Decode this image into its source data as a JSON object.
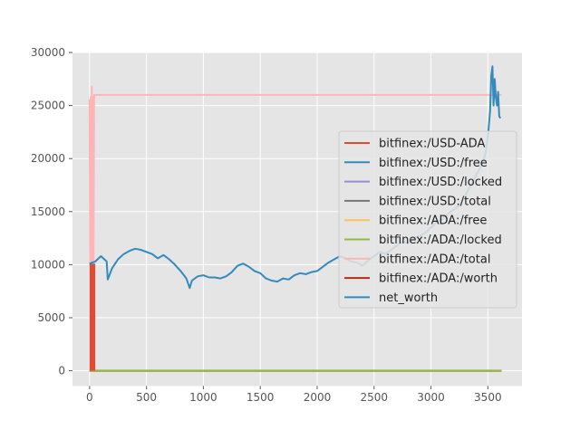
{
  "chart_data": {
    "type": "line",
    "title": "",
    "xlabel": "",
    "ylabel": "",
    "xlim": [
      -150,
      3800
    ],
    "ylim": [
      -1400,
      30000
    ],
    "grid": true,
    "legend_position": "center-right",
    "x_ticks": [
      {
        "value": 0,
        "label": "0"
      },
      {
        "value": 500,
        "label": "500"
      },
      {
        "value": 1000,
        "label": "1000"
      },
      {
        "value": 1500,
        "label": "1500"
      },
      {
        "value": 2000,
        "label": "2000"
      },
      {
        "value": 2500,
        "label": "2500"
      },
      {
        "value": 3000,
        "label": "3000"
      },
      {
        "value": 3500,
        "label": "3500"
      }
    ],
    "y_ticks": [
      {
        "value": 0,
        "label": "0"
      },
      {
        "value": 5000,
        "label": "5000"
      },
      {
        "value": 10000,
        "label": "10000"
      },
      {
        "value": 15000,
        "label": "15000"
      },
      {
        "value": 20000,
        "label": "20000"
      },
      {
        "value": 25000,
        "label": "25000"
      },
      {
        "value": 30000,
        "label": "30000"
      }
    ],
    "series": [
      {
        "name": "bitfinex:/USD-ADA",
        "color": "#e24a33",
        "kind": "band",
        "x": [
          0,
          10,
          20,
          30,
          40,
          50
        ],
        "y": [
          10000,
          0,
          10000,
          0,
          10000,
          0
        ]
      },
      {
        "name": "bitfinex:/USD:/free",
        "color": "#348abd",
        "x": [
          0,
          50
        ],
        "y": [
          10000,
          10000
        ]
      },
      {
        "name": "bitfinex:/USD:/locked",
        "color": "#988ed5",
        "x": [
          0,
          3620
        ],
        "y": [
          0,
          0
        ]
      },
      {
        "name": "bitfinex:/USD:/total",
        "color": "#777777",
        "x": [
          0,
          50
        ],
        "y": [
          10000,
          10000
        ]
      },
      {
        "name": "bitfinex:/ADA:/free",
        "color": "#fbc15e",
        "x": [
          0,
          3620
        ],
        "y": [
          0,
          0
        ]
      },
      {
        "name": "bitfinex:/ADA:/locked",
        "color": "#8eba42",
        "x": [
          0,
          3620
        ],
        "y": [
          0,
          0
        ]
      },
      {
        "name": "bitfinex:/ADA:/total",
        "color": "#ffb5b8",
        "x": [
          0,
          5,
          10,
          15,
          20,
          25,
          30,
          35,
          40,
          50,
          3620
        ],
        "y": [
          25600,
          10200,
          25800,
          10100,
          26800,
          10300,
          25900,
          10100,
          26000,
          26000,
          26000
        ]
      },
      {
        "name": "bitfinex:/ADA:/worth",
        "color": "#b52b18",
        "x": [
          0,
          3620
        ],
        "y": [
          0,
          0
        ]
      },
      {
        "name": "net_worth",
        "color": "#348abd",
        "x": [
          0,
          50,
          100,
          150,
          160,
          200,
          250,
          300,
          350,
          400,
          450,
          500,
          550,
          600,
          650,
          700,
          750,
          800,
          850,
          880,
          900,
          950,
          1000,
          1050,
          1100,
          1150,
          1200,
          1250,
          1300,
          1350,
          1400,
          1450,
          1500,
          1550,
          1600,
          1650,
          1700,
          1750,
          1800,
          1850,
          1900,
          1950,
          2000,
          2050,
          2100,
          2150,
          2200,
          2250,
          2300,
          2350,
          2400,
          2450,
          2500,
          2550,
          2600,
          2650,
          2700,
          2750,
          2800,
          2850,
          2900,
          2950,
          3000,
          3050,
          3100,
          3150,
          3200,
          3250,
          3300,
          3350,
          3400,
          3450,
          3480,
          3500,
          3520,
          3530,
          3540,
          3550,
          3560,
          3570,
          3580,
          3590,
          3600,
          3610
        ],
        "y": [
          10100,
          10300,
          10800,
          10300,
          8600,
          9700,
          10500,
          11000,
          11300,
          11500,
          11400,
          11200,
          11000,
          10600,
          10900,
          10500,
          10000,
          9400,
          8700,
          7800,
          8500,
          8900,
          9000,
          8800,
          8800,
          8700,
          8900,
          9300,
          9900,
          10100,
          9800,
          9400,
          9200,
          8700,
          8500,
          8400,
          8700,
          8600,
          9000,
          9200,
          9100,
          9300,
          9400,
          9800,
          10200,
          10500,
          10800,
          10600,
          10300,
          10200,
          9900,
          10400,
          10800,
          11200,
          11000,
          11400,
          11800,
          12200,
          12000,
          12500,
          12700,
          13000,
          13500,
          14000,
          14300,
          14800,
          15200,
          15600,
          16500,
          17500,
          18500,
          19500,
          20500,
          22000,
          24500,
          27800,
          28700,
          25000,
          27500,
          25800,
          25000,
          26300,
          24000,
          23800
        ]
      }
    ]
  }
}
